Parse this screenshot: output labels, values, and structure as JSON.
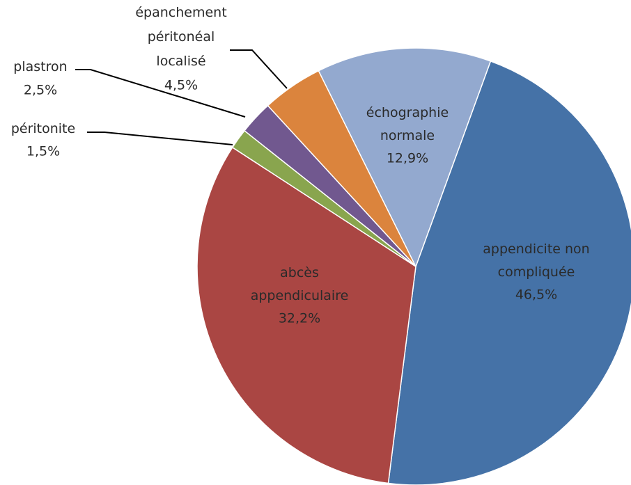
{
  "chart_data": {
    "type": "pie",
    "categories": [
      "appendicite non compliquée",
      "abcès appendiculaire",
      "péritonite",
      "plastron",
      "épanchement péritonéal localisé",
      "échographie normale"
    ],
    "values": [
      46.5,
      32.2,
      1.5,
      2.5,
      4.5,
      12.9
    ],
    "value_labels": [
      "46,5%",
      "32,2%",
      "1,5%",
      "2,5%",
      "4,5%",
      "12,9%"
    ],
    "colors": [
      "#4572a7",
      "#aa4643",
      "#89a54e",
      "#71588f",
      "#db843d",
      "#93a9cf"
    ]
  }
}
